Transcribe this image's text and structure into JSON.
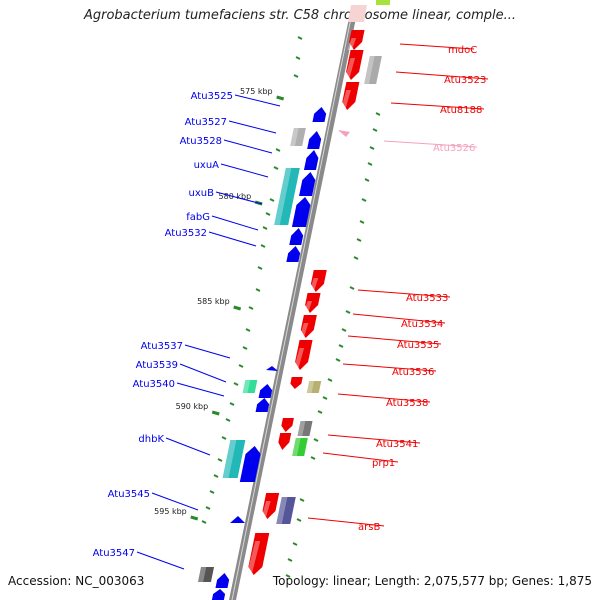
{
  "title": "Agrobacterium tumefaciens str. C58 chromosome linear, comple...",
  "accession": "Accession: NC_003063",
  "summary": "Topology: linear; Length: 2,075,577 bp; Genes: 1,875",
  "colors": {
    "forward_strand": "#0000ee",
    "reverse_strand": "#ee0000",
    "highlight_label": "#f4a0c0",
    "tick": "#2a8a2a",
    "axis": "#8a8a8a"
  },
  "scale_ticks": [
    {
      "label": "575 kbp"
    },
    {
      "label": "580 kbp"
    },
    {
      "label": "585 kbp"
    },
    {
      "label": "590 kbp"
    },
    {
      "label": "595 kbp"
    }
  ],
  "left_genes": [
    {
      "name": "Atu3525"
    },
    {
      "name": "Atu3527"
    },
    {
      "name": "Atu3528"
    },
    {
      "name": "uxuA"
    },
    {
      "name": "uxuB"
    },
    {
      "name": "fabG"
    },
    {
      "name": "Atu3532"
    },
    {
      "name": "Atu3537"
    },
    {
      "name": "Atu3539"
    },
    {
      "name": "Atu3540"
    },
    {
      "name": "dhbK"
    },
    {
      "name": "Atu3545"
    },
    {
      "name": "Atu3547"
    }
  ],
  "right_genes": [
    {
      "name": "mdoC"
    },
    {
      "name": "Atu3523"
    },
    {
      "name": "Atu8188"
    },
    {
      "name": "Atu3526"
    },
    {
      "name": "Atu3533"
    },
    {
      "name": "Atu3534"
    },
    {
      "name": "Atu3535"
    },
    {
      "name": "Atu3536"
    },
    {
      "name": "Atu3538"
    },
    {
      "name": "Atu3541"
    },
    {
      "name": "prp1"
    },
    {
      "name": "arsB"
    }
  ]
}
